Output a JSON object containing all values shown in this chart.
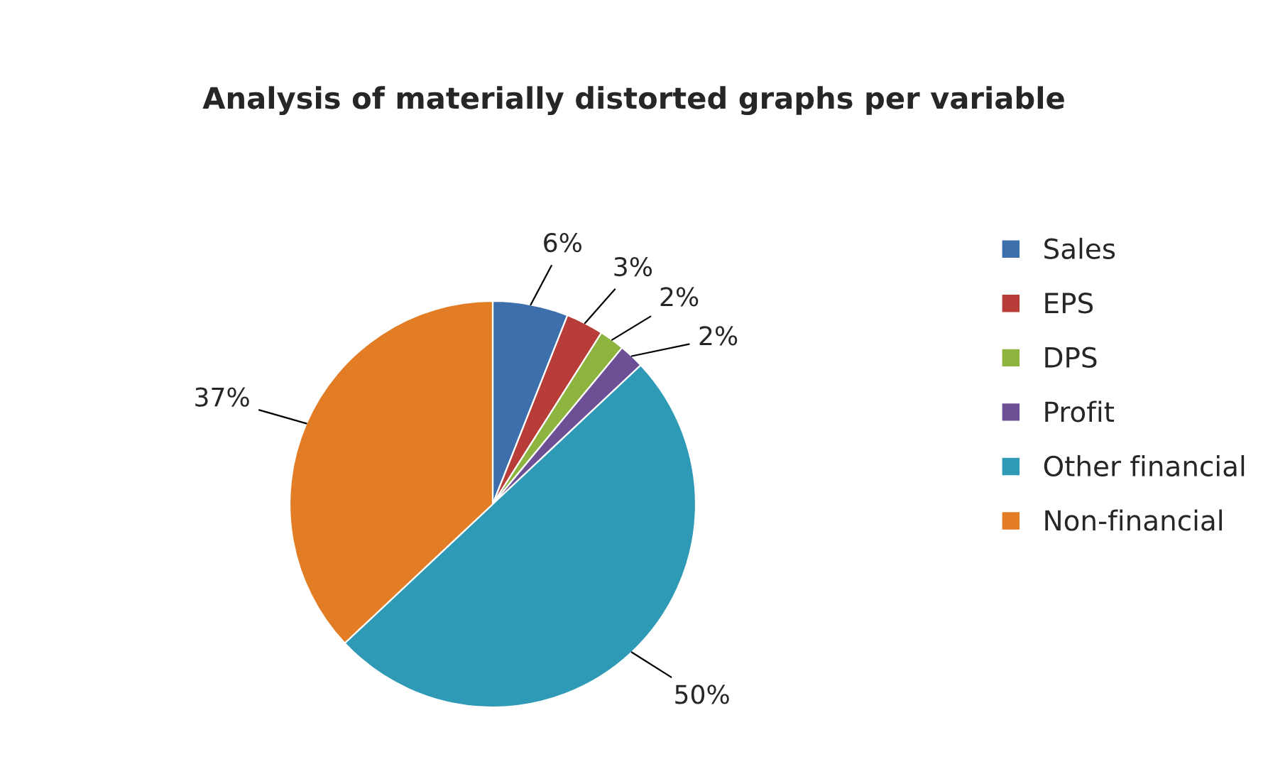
{
  "chart_data": {
    "type": "pie",
    "title": "Analysis of materially distorted graphs per variable",
    "categories": [
      "Sales",
      "EPS",
      "DPS",
      "Profit",
      "Other financial",
      "Non-financial"
    ],
    "values": [
      6,
      3,
      2,
      2,
      50,
      37
    ],
    "colors": [
      "#3c6fab",
      "#b83c38",
      "#8cb43f",
      "#6c4f94",
      "#2f9ab6",
      "#e27d26"
    ],
    "value_labels": [
      "6%",
      "3%",
      "2%",
      "2%",
      "50%",
      "37%"
    ],
    "legend": "right"
  }
}
